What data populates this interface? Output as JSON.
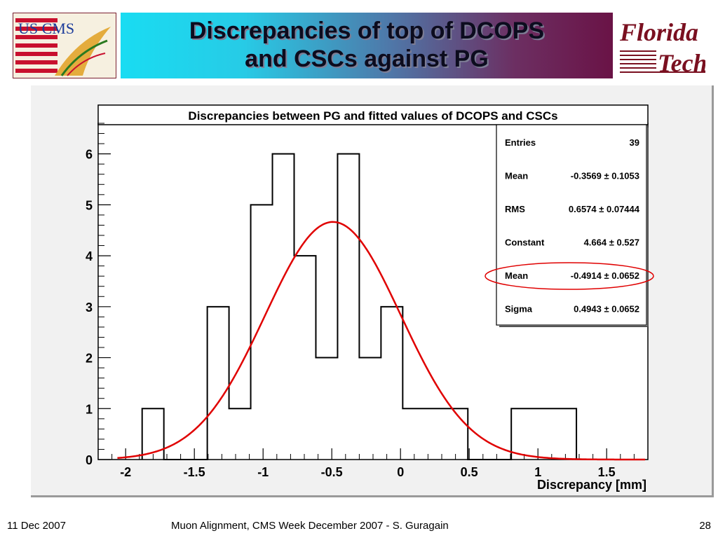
{
  "slide": {
    "title_line1": "Discrepancies of top of DCOPS",
    "title_line2": "and CSCs against PG"
  },
  "logos": {
    "left_text": "US CMS",
    "right_line1": "Florida",
    "right_line2": "Tech"
  },
  "footer": {
    "date": "11 Dec 2007",
    "center": "Muon Alignment, CMS Week December 2007  - S. Guragain",
    "page": "28"
  },
  "colors": {
    "fit_curve": "#e00000",
    "highlight_ellipse": "#e00000",
    "histogram": "#000000"
  },
  "chart_data": {
    "type": "bar",
    "title": "Discrepancies between PG and fitted values of DCOPS and CSCs",
    "xlabel": "Discrepancy [mm]",
    "ylabel": "",
    "xlim": [
      -2.2,
      1.8
    ],
    "ylim": [
      0,
      6.6
    ],
    "x_ticks": [
      "-2",
      "-1.5",
      "-1",
      "-0.5",
      "0",
      "0.5",
      "1",
      "1.5"
    ],
    "y_ticks": [
      "0",
      "1",
      "2",
      "3",
      "4",
      "5",
      "6"
    ],
    "bin_width": 0.158,
    "bin_edges_start": -1.88,
    "values": [
      1,
      0,
      0,
      3,
      1,
      5,
      6,
      4,
      2,
      6,
      2,
      3,
      1,
      1,
      1,
      0,
      0,
      1,
      1,
      1
    ],
    "fit": {
      "type": "gaussian",
      "constant": 4.664,
      "mean": -0.4914,
      "sigma": 0.4943
    },
    "stats_box": [
      {
        "label": "Entries",
        "value": "39"
      },
      {
        "label": "Mean",
        "value": "-0.3569 ± 0.1053"
      },
      {
        "label": "RMS",
        "value": "0.6574 ± 0.07444"
      },
      {
        "label": "Constant",
        "value": "4.664 ± 0.527"
      },
      {
        "label": "Mean",
        "value": "-0.4914 ± 0.0652",
        "highlighted": true
      },
      {
        "label": "Sigma",
        "value": "0.4943 ± 0.0652"
      }
    ]
  }
}
